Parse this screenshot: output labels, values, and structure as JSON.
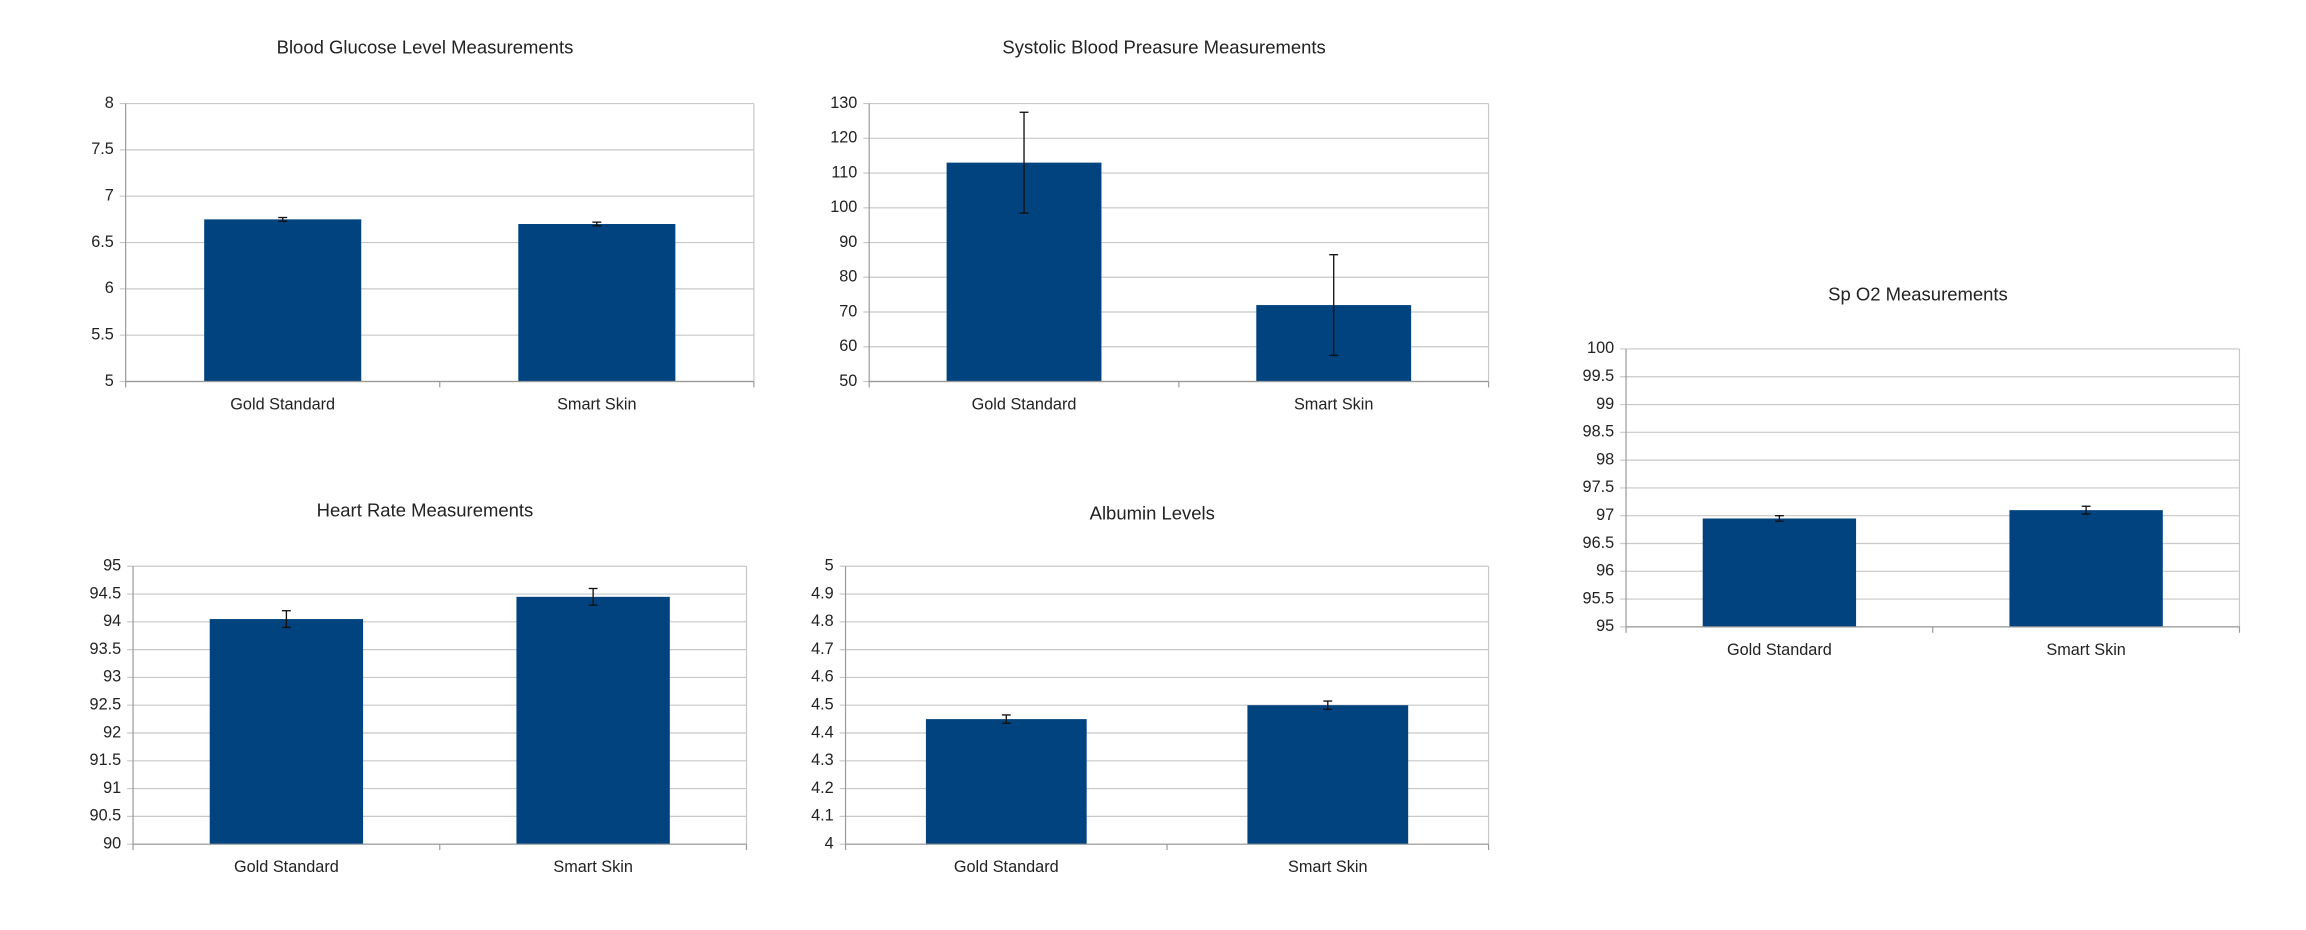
{
  "chart_data": [
    {
      "type": "bar",
      "title": "Blood Glucose Level Measurements",
      "categories": [
        "Gold Standard",
        "Smart Skin"
      ],
      "values": [
        6.75,
        6.7
      ],
      "errors": [
        0.02,
        0.02
      ],
      "color": "#00437f",
      "ylim": [
        5,
        8
      ],
      "yticks": [
        5,
        5.5,
        6,
        6.5,
        7,
        7.5,
        8
      ],
      "grid": true
    },
    {
      "type": "bar",
      "title": "Systolic Blood Preasure Measurements",
      "categories": [
        "Gold Standard",
        "Smart Skin"
      ],
      "values": [
        113,
        72
      ],
      "errors": [
        14.5,
        14.5
      ],
      "color": "#00437f",
      "ylim": [
        50,
        130
      ],
      "yticks": [
        50,
        60,
        70,
        80,
        90,
        100,
        110,
        120,
        130
      ],
      "grid": true
    },
    {
      "type": "bar",
      "title": "Sp O2 Measurements",
      "categories": [
        "Gold Standard",
        "Smart Skin"
      ],
      "values": [
        96.95,
        97.1
      ],
      "errors": [
        0.05,
        0.07
      ],
      "color": "#00437f",
      "ylim": [
        95,
        100
      ],
      "yticks": [
        95,
        95.5,
        96,
        96.5,
        97,
        97.5,
        98,
        98.5,
        99,
        99.5,
        100
      ],
      "grid": true
    },
    {
      "type": "bar",
      "title": "Heart Rate Measurements",
      "categories": [
        "Gold Standard",
        "Smart Skin"
      ],
      "values": [
        94.05,
        94.45
      ],
      "errors": [
        0.15,
        0.15
      ],
      "color": "#00437f",
      "ylim": [
        90,
        95
      ],
      "yticks": [
        90,
        90.5,
        91,
        91.5,
        92,
        92.5,
        93,
        93.5,
        94,
        94.5,
        95
      ],
      "grid": true
    },
    {
      "type": "bar",
      "title": "Albumin Levels",
      "categories": [
        "Gold Standard",
        "Smart Skin"
      ],
      "values": [
        4.45,
        4.5
      ],
      "errors": [
        0.015,
        0.015
      ],
      "color": "#00437f",
      "ylim": [
        4,
        5
      ],
      "yticks": [
        4,
        4.1,
        4.2,
        4.3,
        4.4,
        4.5,
        4.6,
        4.7,
        4.8,
        4.9,
        5
      ],
      "grid": true
    }
  ]
}
